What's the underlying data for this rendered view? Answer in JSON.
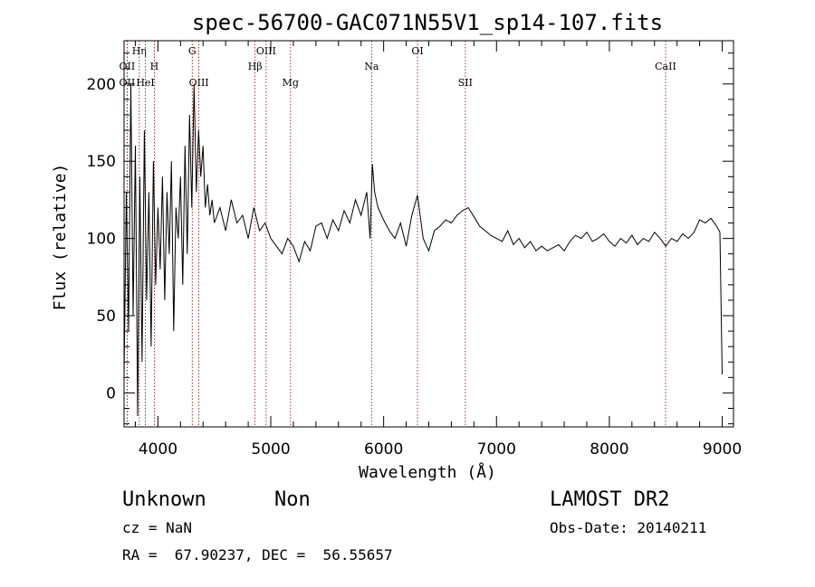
{
  "chart_data": {
    "type": "line",
    "title": "spec-56700-GAC071N55V1_sp14-107.fits",
    "xlabel": "Wavelength (Å)",
    "ylabel": "Flux (relative)",
    "xlim": [
      3700,
      9100
    ],
    "ylim": [
      -22,
      228
    ],
    "x_ticks": [
      4000,
      5000,
      6000,
      7000,
      8000,
      9000
    ],
    "x_tick_labels": [
      "4000",
      "5000",
      "6000",
      "7000",
      "8000",
      "9000"
    ],
    "y_ticks": [
      0,
      50,
      100,
      150,
      200
    ],
    "y_tick_labels": [
      "0",
      "50",
      "100",
      "150",
      "200"
    ],
    "grid": false,
    "series": [
      {
        "values_x": [
          3700,
          3720,
          3740,
          3760,
          3780,
          3800,
          3820,
          3840,
          3860,
          3880,
          3900,
          3920,
          3940,
          3960,
          3980,
          4000,
          4020,
          4040,
          4060,
          4080,
          4100,
          4120,
          4140,
          4160,
          4180,
          4200,
          4220,
          4240,
          4260,
          4280,
          4300,
          4320,
          4340,
          4360,
          4380,
          4400,
          4420,
          4440,
          4460,
          4480,
          4500,
          4550,
          4600,
          4650,
          4700,
          4750,
          4800,
          4850,
          4900,
          4950,
          5000,
          5050,
          5100,
          5150,
          5200,
          5250,
          5300,
          5350,
          5400,
          5450,
          5500,
          5550,
          5600,
          5650,
          5700,
          5750,
          5800,
          5850,
          5880,
          5900,
          5920,
          5950,
          6000,
          6050,
          6100,
          6150,
          6200,
          6250,
          6300,
          6350,
          6400,
          6450,
          6500,
          6550,
          6600,
          6650,
          6700,
          6750,
          6800,
          6850,
          6900,
          6950,
          7000,
          7050,
          7100,
          7150,
          7200,
          7250,
          7300,
          7350,
          7400,
          7450,
          7500,
          7550,
          7600,
          7650,
          7700,
          7750,
          7800,
          7850,
          7900,
          7950,
          8000,
          8050,
          8100,
          8150,
          8200,
          8250,
          8300,
          8350,
          8400,
          8450,
          8500,
          8550,
          8600,
          8650,
          8700,
          8750,
          8800,
          8850,
          8900,
          8950,
          8980,
          9000
        ],
        "values_y": [
          10,
          130,
          40,
          200,
          50,
          160,
          -15,
          140,
          20,
          170,
          60,
          130,
          30,
          150,
          70,
          120,
          80,
          140,
          60,
          130,
          90,
          150,
          40,
          120,
          100,
          140,
          70,
          160,
          90,
          180,
          120,
          200,
          130,
          170,
          140,
          160,
          120,
          135,
          115,
          125,
          110,
          120,
          105,
          125,
          110,
          115,
          100,
          120,
          105,
          110,
          100,
          95,
          90,
          100,
          95,
          85,
          98,
          92,
          108,
          110,
          100,
          112,
          105,
          118,
          110,
          125,
          115,
          130,
          100,
          148,
          130,
          120,
          112,
          105,
          100,
          110,
          95,
          115,
          128,
          100,
          92,
          105,
          108,
          112,
          110,
          115,
          118,
          120,
          114,
          108,
          105,
          102,
          100,
          98,
          105,
          96,
          100,
          94,
          98,
          92,
          95,
          92,
          94,
          96,
          92,
          98,
          102,
          100,
          104,
          98,
          100,
          103,
          98,
          95,
          100,
          97,
          102,
          96,
          100,
          98,
          104,
          100,
          95,
          100,
          98,
          103,
          100,
          104,
          112,
          110,
          113,
          108,
          104,
          12
        ]
      }
    ],
    "annotations": [
      {
        "label": "OII",
        "x": 3727,
        "row": 2
      },
      {
        "label": "OII",
        "x": 3727,
        "row": 3
      },
      {
        "label": "Hη",
        "x": 3835,
        "row": 1
      },
      {
        "label": "HeI",
        "x": 3889,
        "row": 3
      },
      {
        "label": "H",
        "x": 3968,
        "row": 2
      },
      {
        "label": "G",
        "x": 4304,
        "row": 1
      },
      {
        "label": "OIII",
        "x": 4363,
        "row": 3
      },
      {
        "label": "Hβ",
        "x": 4861,
        "row": 2
      },
      {
        "label": "OIII",
        "x": 4959,
        "row": 1
      },
      {
        "label": "Mg",
        "x": 5175,
        "row": 3
      },
      {
        "label": "Na",
        "x": 5893,
        "row": 2
      },
      {
        "label": "OI",
        "x": 6300,
        "row": 1
      },
      {
        "label": "SII",
        "x": 6724,
        "row": 3
      },
      {
        "label": "CaII",
        "x": 8498,
        "row": 2
      }
    ]
  },
  "info": {
    "object_class": "Unknown",
    "subclass": "Non",
    "survey": "LAMOST DR2",
    "cz": "cz = NaN",
    "obs_date": "Obs-Date: 20140211",
    "coords": "RA =  67.90237, DEC =  56.55657"
  },
  "colors": {
    "axis": "#000000",
    "spectrum": "#000000",
    "line_marker": "#8b0000"
  }
}
